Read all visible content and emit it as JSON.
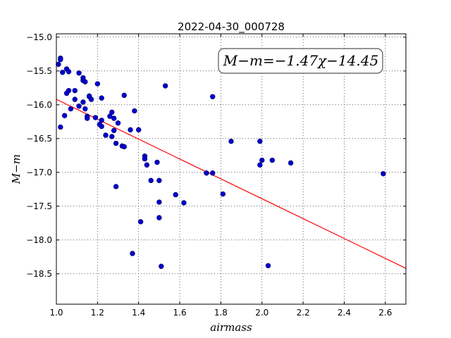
{
  "chart_data": {
    "type": "scatter",
    "title": "2022-04-30_000728",
    "xlabel": "airmass",
    "ylabel": "M−m",
    "xlim": [
      1.0,
      2.7
    ],
    "ylim": [
      -18.95,
      -14.95
    ],
    "y_inverted": true,
    "grid": true,
    "grid_style": "dotted",
    "xticks": [
      1.0,
      1.2,
      1.4,
      1.6,
      1.8,
      2.0,
      2.2,
      2.4,
      2.6
    ],
    "xtick_labels": [
      "1.0",
      "1.2",
      "1.4",
      "1.6",
      "1.8",
      "2.0",
      "2.2",
      "2.4",
      "2.6"
    ],
    "yticks": [
      -15.0,
      -15.5,
      -16.0,
      -16.5,
      -17.0,
      -17.5,
      -18.0,
      -18.5
    ],
    "ytick_labels": [
      "−15.0",
      "−15.5",
      "−16.0",
      "−16.5",
      "−17.0",
      "−17.5",
      "−18.0",
      "−18.5"
    ],
    "annotation": "M−m=−1.47χ−14.45",
    "fit": {
      "slope": -1.47,
      "intercept": -14.45,
      "color": "#ff0000"
    },
    "point_color": "#0000cc",
    "points": [
      [
        1.01,
        -15.4
      ],
      [
        1.02,
        -15.31
      ],
      [
        1.02,
        -15.33
      ],
      [
        1.03,
        -15.52
      ],
      [
        1.05,
        -15.47
      ],
      [
        1.06,
        -15.51
      ],
      [
        1.05,
        -15.83
      ],
      [
        1.06,
        -15.79
      ],
      [
        1.09,
        -15.79
      ],
      [
        1.11,
        -15.53
      ],
      [
        1.13,
        -15.6
      ],
      [
        1.13,
        -15.64
      ],
      [
        1.14,
        -15.66
      ],
      [
        1.02,
        -16.33
      ],
      [
        1.04,
        -16.16
      ],
      [
        1.07,
        -16.06
      ],
      [
        1.09,
        -15.92
      ],
      [
        1.11,
        -16.02
      ],
      [
        1.13,
        -15.96
      ],
      [
        1.14,
        -16.06
      ],
      [
        1.15,
        -16.17
      ],
      [
        1.15,
        -16.2
      ],
      [
        1.16,
        -15.88
      ],
      [
        1.17,
        -15.92
      ],
      [
        1.16,
        -15.87
      ],
      [
        1.19,
        -16.19
      ],
      [
        1.21,
        -16.29
      ],
      [
        1.22,
        -16.23
      ],
      [
        1.22,
        -16.32
      ],
      [
        1.2,
        -15.69
      ],
      [
        1.22,
        -15.9
      ],
      [
        1.24,
        -16.45
      ],
      [
        1.26,
        -16.17
      ],
      [
        1.27,
        -16.11
      ],
      [
        1.27,
        -16.47
      ],
      [
        1.28,
        -16.2
      ],
      [
        1.28,
        -16.38
      ],
      [
        1.29,
        -16.57
      ],
      [
        1.3,
        -16.27
      ],
      [
        1.32,
        -16.61
      ],
      [
        1.33,
        -16.62
      ],
      [
        1.33,
        -15.86
      ],
      [
        1.36,
        -16.37
      ],
      [
        1.38,
        -16.09
      ],
      [
        1.4,
        -16.37
      ],
      [
        1.29,
        -17.21
      ],
      [
        1.43,
        -16.76
      ],
      [
        1.43,
        -16.8
      ],
      [
        1.44,
        -16.89
      ],
      [
        1.49,
        -16.85
      ],
      [
        1.46,
        -17.12
      ],
      [
        1.5,
        -17.12
      ],
      [
        1.5,
        -17.44
      ],
      [
        1.5,
        -17.67
      ],
      [
        1.53,
        -15.72
      ],
      [
        1.41,
        -17.73
      ],
      [
        1.37,
        -18.2
      ],
      [
        1.51,
        -18.39
      ],
      [
        1.58,
        -17.33
      ],
      [
        1.62,
        -17.45
      ],
      [
        1.73,
        -17.01
      ],
      [
        1.76,
        -17.01
      ],
      [
        1.81,
        -17.32
      ],
      [
        1.76,
        -15.88
      ],
      [
        1.85,
        -16.54
      ],
      [
        1.99,
        -16.54
      ],
      [
        1.99,
        -16.89
      ],
      [
        2.0,
        -16.82
      ],
      [
        2.05,
        -16.82
      ],
      [
        2.14,
        -16.86
      ],
      [
        2.03,
        -18.38
      ],
      [
        2.59,
        -17.02
      ]
    ]
  }
}
